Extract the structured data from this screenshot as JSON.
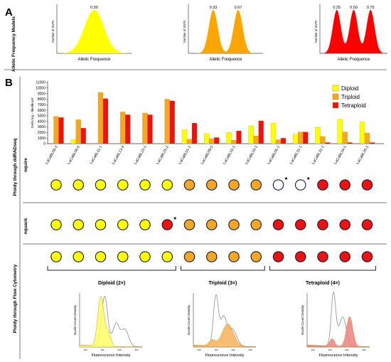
{
  "panels": {
    "a": {
      "letter": "A",
      "side_label": "Allelic Frequency Models",
      "models": [
        {
          "peaks": [
            "0.50"
          ],
          "y_label": "Number of SNPs",
          "x_label": "Allelic Frequence",
          "color": "#ffff00"
        },
        {
          "peaks": [
            "0.33",
            "0.67"
          ],
          "y_label": "Number of SNPs",
          "x_label": "Allelic Frequence",
          "color": "#ffa500"
        },
        {
          "peaks": [
            "0.25",
            "0.50",
            "0.75"
          ],
          "y_label": "Number of SNPs",
          "x_label": "Allelic Frequence",
          "color": "#ff0000"
        }
      ]
    },
    "b": {
      "letter": "B",
      "side_label_top": "Ploidy through ddRADseq",
      "side_label_bottom": "Ploidy through Flow Cytometry",
      "row_labels": {
        "nquire": "nquire",
        "nquack": "nquack"
      },
      "samples": [
        "LaCaBL06-3",
        "LaCaBL08-5",
        "LaCaBL11-1",
        "LaCaBL13-4",
        "LaCaBL23-1",
        "LaCaBL25-2",
        "LaCaBL01-1",
        "LaCaBL09-5",
        "LaCaBL10-1",
        "LaCaBL33-1",
        "LaCaBL05-1",
        "LaCaBL31-1",
        "LaCaBL32-1",
        "LaCaBL34-1",
        "LaCaBL35-1"
      ],
      "nquire_calls": [
        "diploid",
        "diploid",
        "diploid",
        "diploid",
        "diploid",
        "diploid",
        "triploid",
        "triploid",
        "triploid",
        "triploid",
        "none",
        "none",
        "tetraploid",
        "tetraploid",
        "tetraploid"
      ],
      "nquire_asterisks": [
        "",
        "",
        "",
        "",
        "",
        "",
        "",
        "",
        "",
        "",
        "*",
        "*",
        "",
        "",
        ""
      ],
      "nquack_calls": [
        "diploid",
        "diploid",
        "diploid",
        "diploid",
        "diploid",
        "tetraploid",
        "triploid",
        "triploid",
        "triploid",
        "triploid",
        "tetraploid",
        "tetraploid",
        "tetraploid",
        "tetraploid",
        "tetraploid"
      ],
      "nquack_asterisks": [
        "",
        "",
        "",
        "",
        "",
        "*",
        "",
        "",
        "",
        "",
        "",
        "",
        "",
        "",
        ""
      ],
      "flow_calls": [
        "diploid",
        "diploid",
        "diploid",
        "diploid",
        "diploid",
        "diploid",
        "triploid",
        "triploid",
        "triploid",
        "triploid",
        "tetraploid",
        "tetraploid",
        "tetraploid",
        "tetraploid",
        "tetraploid"
      ],
      "ploidy_colors": {
        "diploid": "#ffff00",
        "triploid": "#f5a623",
        "tetraploid": "#ee1111",
        "none": "#ffffff"
      },
      "groups": [
        {
          "label": "Diploid (2×)",
          "ploidy": "diploid",
          "start": 0,
          "end": 5
        },
        {
          "label": "Triploid (3×)",
          "ploidy": "triploid",
          "start": 6,
          "end": 9
        },
        {
          "label": "Tetraploid (4×)",
          "ploidy": "tetraploid",
          "start": 10,
          "end": 14
        }
      ],
      "histograms": [
        {
          "ploidy": "diploid",
          "y_label": "Nuclei Count Density",
          "x_label": "Fluorescence Intensity",
          "ticks": [
            "100",
            "150",
            "200",
            "250"
          ],
          "fill": "#ffff66"
        },
        {
          "ploidy": "triploid",
          "y_label": "Nuclei Count Density",
          "x_label": "Fluorescence Intensity",
          "ticks": [
            "100",
            "150",
            "200",
            "250"
          ],
          "fill": "#f5b25a"
        },
        {
          "ploidy": "tetraploid",
          "y_label": "Nuclei Count Density",
          "x_label": "Fluorescence Intensity",
          "ticks": [
            "100",
            "150",
            "200",
            "250"
          ],
          "fill": "#f08080"
        }
      ]
    }
  },
  "chart_data": {
    "type": "bar",
    "categories": [
      "LaCaBL06-3",
      "LaCaBL08-5",
      "LaCaBL11-1",
      "LaCaBL13-4",
      "LaCaBL23-1",
      "LaCaBL25-2",
      "LaCaBL01-1",
      "LaCaBL09-5",
      "LaCaBL10-1",
      "LaCaBL33-1",
      "LaCaBL05-1",
      "LaCaBL31-1",
      "LaCaBL32-1",
      "LaCaBL34-1",
      "LaCaBL35-1"
    ],
    "series": [
      {
        "name": "Diploid",
        "color": "#ffff00",
        "values": [
          0,
          700,
          0,
          0,
          0,
          0,
          2500,
          1800,
          2000,
          3200,
          3700,
          1700,
          2900,
          4400,
          3900
        ]
      },
      {
        "name": "Triploid",
        "color": "#f5a623",
        "values": [
          4900,
          4300,
          9200,
          5700,
          5500,
          8000,
          800,
          900,
          600,
          1400,
          700,
          2100,
          1300,
          2100,
          1900
        ]
      },
      {
        "name": "Tetraploid",
        "color": "#ee1111",
        "values": [
          4700,
          2800,
          8100,
          5200,
          5200,
          7700,
          3700,
          1100,
          2300,
          4100,
          1000,
          2100,
          200,
          200,
          200
        ]
      }
    ],
    "ylabel": "Delta log – likelihood",
    "yticks": [
      "0",
      "1000",
      "2000",
      "3000",
      "4000",
      "5000",
      "6000",
      "7000",
      "8000",
      "9000",
      "10000",
      "11000"
    ],
    "ylim": [
      0,
      11000
    ],
    "legend": "top-right"
  }
}
